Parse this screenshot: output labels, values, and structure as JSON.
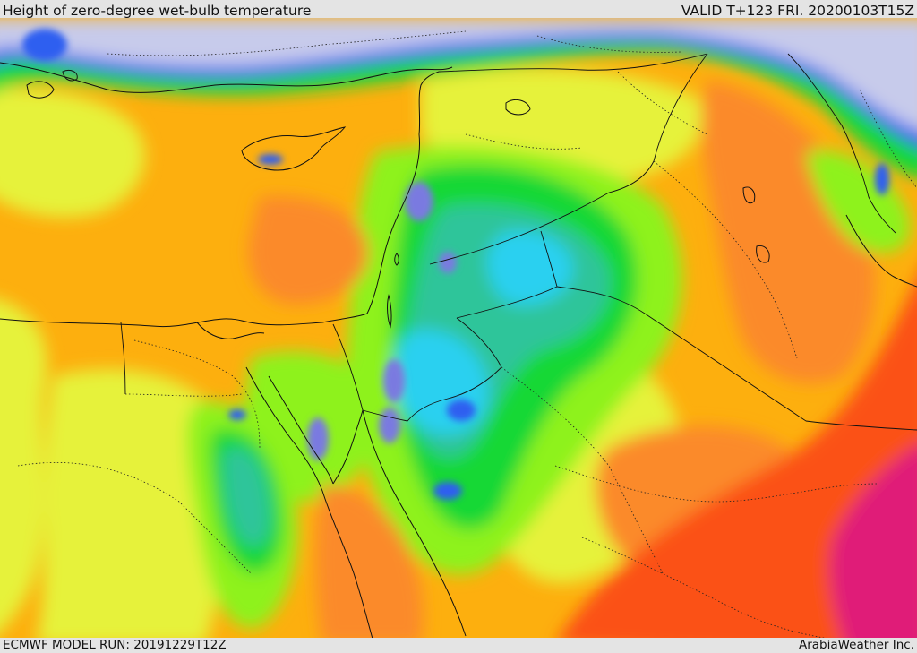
{
  "header": {
    "title": "Height of zero-degree wet-bulb temperature",
    "valid_time": "VALID T+123 FRI. 20200103T15Z"
  },
  "footer": {
    "model_run": "ECMWF MODEL RUN: 20191229T12Z",
    "credit": "ArabiaWeather Inc."
  },
  "palette": {
    "lavender": "#c7cbeb",
    "blue": "#2f5ff0",
    "violet": "#7a7ae0",
    "cyan": "#2ad0f0",
    "teal": "#2fc59a",
    "green": "#16d836",
    "lime": "#8ef21c",
    "yellow": "#e6f23a",
    "orange": "#fdaf0e",
    "dark_orange": "#fb8a2c",
    "red_orange": "#fb5119",
    "magenta": "#e01a78",
    "frame": "#e4e4e4"
  }
}
